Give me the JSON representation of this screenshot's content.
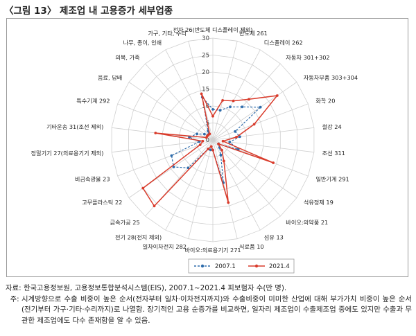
{
  "title": "〈그림 13〉 제조업 내 고용증가 세부업종",
  "chart_data": {
    "type": "radar",
    "axis_ticks": [
      0,
      5,
      10,
      15,
      20,
      25,
      30
    ],
    "range": [
      0,
      30
    ],
    "axis_order": "clockwise from top",
    "categories": [
      "전자 26(반도체 디스플레이 제외)",
      "반도체 261",
      "디스플레이 262",
      "자동차 301+302",
      "자동차부품 303+304",
      "화학 20",
      "철강 24",
      "조선 311",
      "일반기계 291",
      "석유정제 19",
      "바이오:의약품 21",
      "섬유 13",
      "식료품 10",
      "바이오:의료용기기 271",
      "일차이차전지 282",
      "전기 28(전지 제외)",
      "금속가공 25",
      "고무플라스틱 22",
      "비금속광물 23",
      "정밀기기 27(의료용기기 제외)",
      "기타운송 31(조선 제외)",
      "특수기계 292",
      "음료, 담배",
      "의복, 가죽",
      "나무, 종이, 인쇄",
      "가구, 기타, 수리"
    ],
    "series": [
      {
        "name": "2007.1",
        "color": "#2e6cab",
        "values": [
          9,
          9,
          11,
          13,
          17,
          7,
          8,
          5,
          8,
          2,
          3,
          5,
          13,
          3,
          3,
          3,
          11,
          14,
          13,
          4,
          7,
          5,
          3,
          2,
          3,
          13
        ]
      },
      {
        "name": "2021.4",
        "color": "#d93b2b",
        "values": [
          7,
          12,
          13,
          16,
          23,
          13,
          7,
          3,
          19,
          2,
          4,
          7,
          19,
          3,
          2,
          3,
          26,
          25,
          4,
          3,
          17,
          2,
          2,
          2,
          2,
          14
        ]
      }
    ],
    "legend_position": "bottom"
  },
  "notes": [
    {
      "label": "자료: ",
      "text": "한국고용정보원, 고용정보통합분석시스템(EIS), 2007.1~2021.4 피보험자 수(만 명)."
    },
    {
      "label": "  주: ",
      "text": "시계방향으로 수출 비중이 높은 순서(전자부터 일차·이차전지까지)와 수출비중이 미미한 산업에 대해 부가가치 비중이 높은 순서(전기부터 가구·기타·수리까지)로 나열함. 장기적인 고용 순증가를 비교하면, 일자리 제조업이 수출제조업 중에도 있지만 수출과 무관한 제조업에도 다수 존재함을 알 수 있음."
    }
  ]
}
